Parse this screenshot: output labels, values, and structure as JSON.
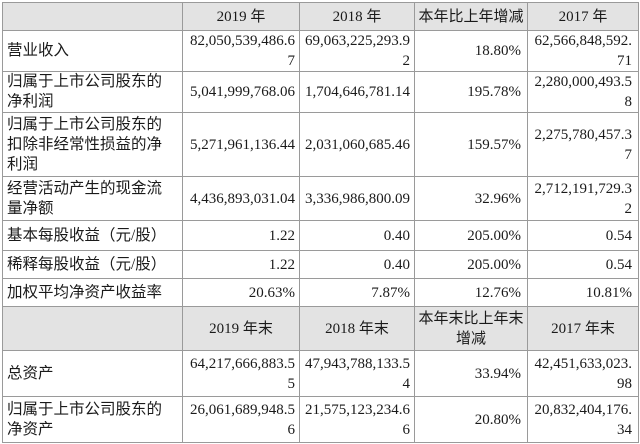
{
  "table": {
    "header_top": [
      "2019 年",
      "2018 年",
      "本年比上年增减",
      "2017 年"
    ],
    "rows_top": [
      {
        "label": "营业收入",
        "values": [
          "82,050,539,486.67",
          "69,063,225,293.92",
          "18.80%",
          "62,566,848,592.71"
        ]
      },
      {
        "label": "归属于上市公司股东的净利润",
        "values": [
          "5,041,999,768.06",
          "1,704,646,781.14",
          "195.78%",
          "2,280,000,493.58"
        ]
      },
      {
        "label": "归属于上市公司股东的扣除非经常性损益的净利润",
        "values": [
          "5,271,961,136.44",
          "2,031,060,685.46",
          "159.57%",
          "2,275,780,457.37"
        ]
      },
      {
        "label": "经营活动产生的现金流量净额",
        "values": [
          "4,436,893,031.04",
          "3,336,986,800.09",
          "32.96%",
          "2,712,191,729.32"
        ]
      },
      {
        "label": "基本每股收益（元/股）",
        "values": [
          "1.22",
          "0.40",
          "205.00%",
          "0.54"
        ]
      },
      {
        "label": "稀释每股收益（元/股）",
        "values": [
          "1.22",
          "0.40",
          "205.00%",
          "0.54"
        ]
      },
      {
        "label": "加权平均净资产收益率",
        "values": [
          "20.63%",
          "7.87%",
          "12.76%",
          "10.81%"
        ]
      }
    ],
    "header_bottom": [
      "2019 年末",
      "2018 年末",
      "本年末比上年末增减",
      "2017 年末"
    ],
    "rows_bottom": [
      {
        "label": "总资产",
        "values": [
          "64,217,666,883.55",
          "47,943,788,133.54",
          "33.94%",
          "42,451,633,023.98"
        ]
      },
      {
        "label": "归属于上市公司股东的净资产",
        "values": [
          "26,061,689,948.56",
          "21,575,123,234.66",
          "20.80%",
          "20,832,404,176.34"
        ]
      }
    ]
  }
}
